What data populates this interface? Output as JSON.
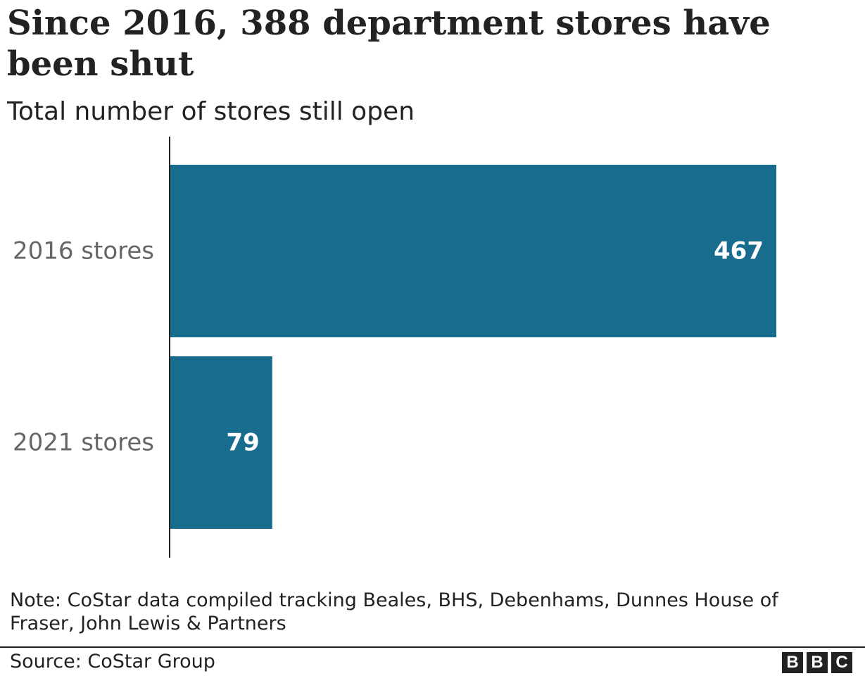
{
  "header": {
    "title": "Since 2016, 388 department stores have been shut",
    "subtitle": "Total number of stores still open"
  },
  "chart_data": {
    "type": "bar",
    "orientation": "horizontal",
    "categories": [
      "2016 stores",
      "2021 stores"
    ],
    "values": [
      467,
      79
    ],
    "value_labels": [
      "467",
      "79"
    ],
    "bar_color": "#186d8f",
    "xlim": [
      0,
      467
    ],
    "grid": false,
    "legend": "none"
  },
  "footer": {
    "note": "Note: CoStar data compiled tracking Beales, BHS, Debenhams, Dunnes House of Fraser, John Lewis & Partners",
    "source": "Source: CoStar Group",
    "logo_letters": [
      "B",
      "B",
      "C"
    ]
  },
  "colors": {
    "bar": "#186d8f",
    "axis": "#222222",
    "category_text": "#666666",
    "value_text": "#ffffff"
  }
}
